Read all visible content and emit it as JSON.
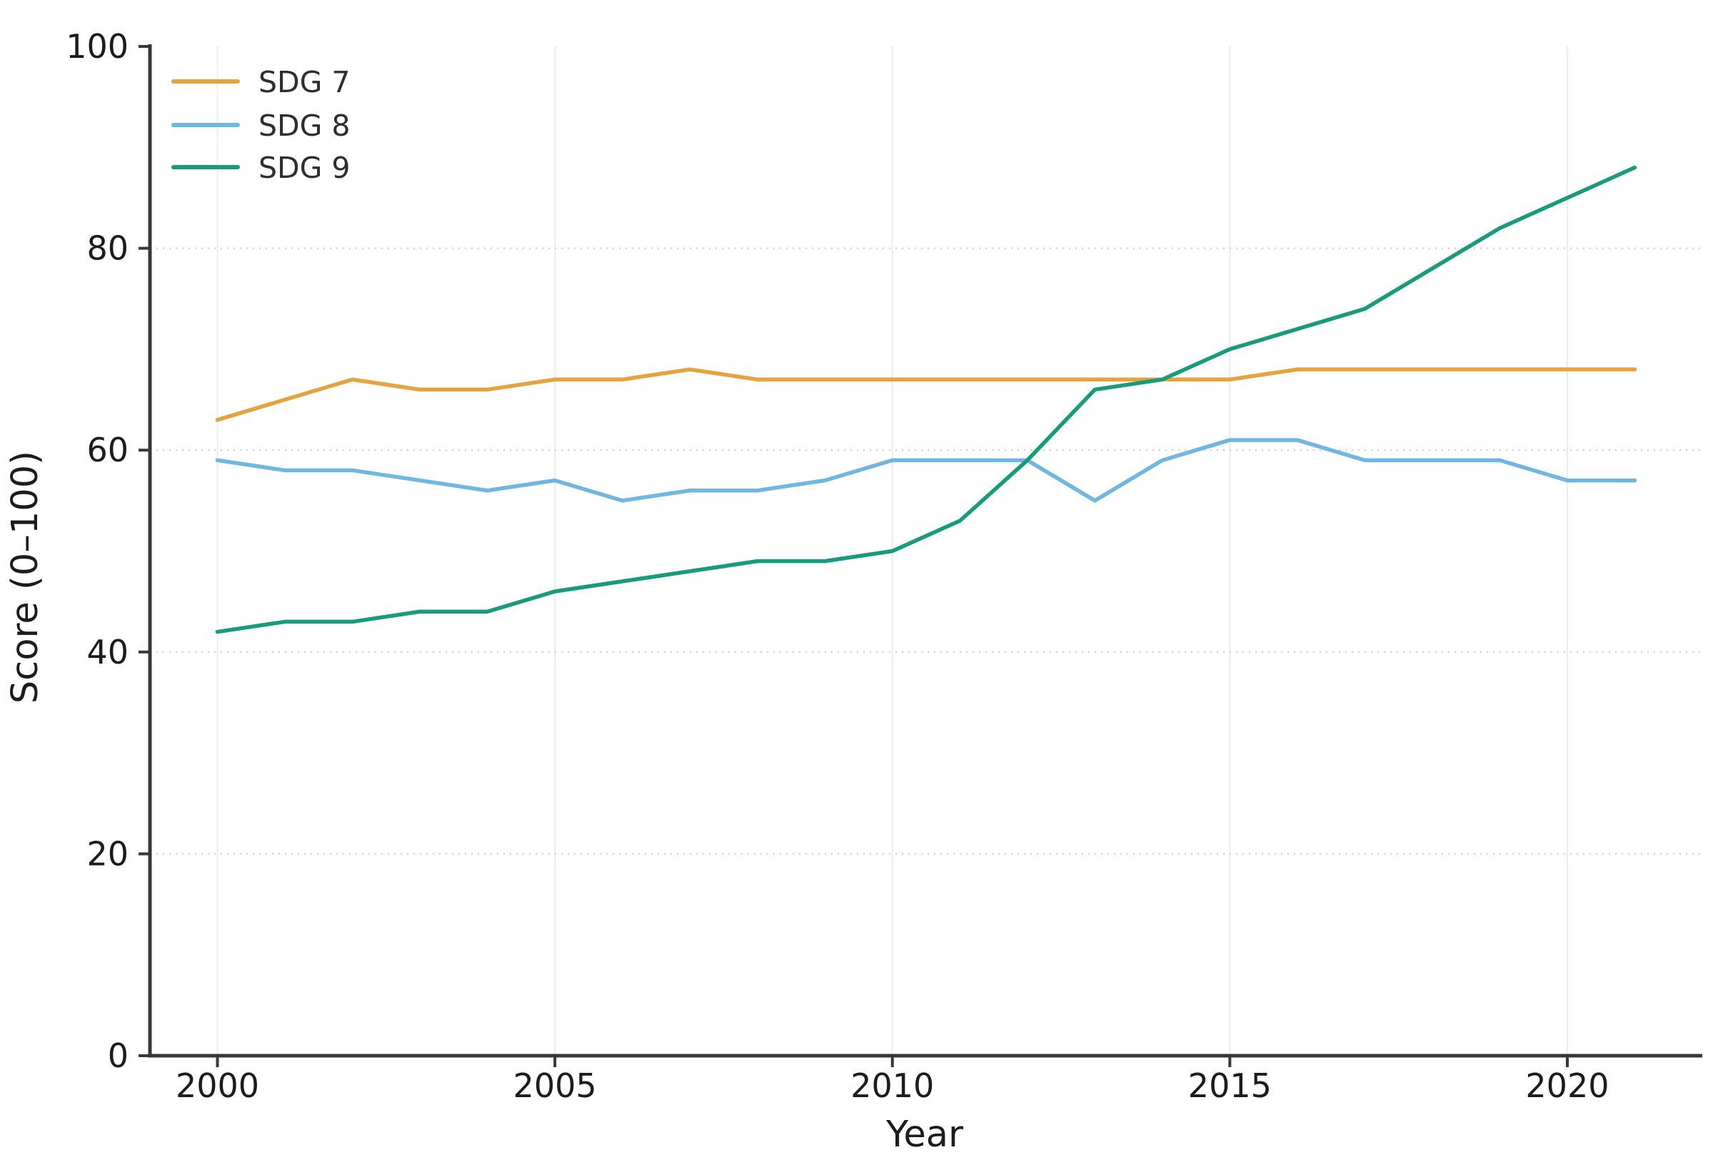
{
  "figure": {
    "background": "#ffffff",
    "xlabel": "Year",
    "ylabel": "Score (0–100)",
    "legend": [
      {
        "label": "SDG 7",
        "color": "#E5A33D"
      },
      {
        "label": "SDG 8",
        "color": "#6FB6E0"
      },
      {
        "label": "SDG 9",
        "color": "#169C7B"
      }
    ],
    "axis_color": "#383838",
    "grid_color_h": "#c9c9c9",
    "grid_color_v": "#ececec"
  },
  "chart_data": {
    "type": "line",
    "title": "",
    "xlabel": "Year",
    "ylabel": "Score (0–100)",
    "x": [
      2000,
      2001,
      2002,
      2003,
      2004,
      2005,
      2006,
      2007,
      2008,
      2009,
      2010,
      2011,
      2012,
      2013,
      2014,
      2015,
      2016,
      2017,
      2018,
      2019,
      2020,
      2021
    ],
    "series": [
      {
        "name": "SDG 7",
        "color": "#E5A33D",
        "values": [
          63,
          65,
          67,
          66,
          66,
          67,
          67,
          68,
          67,
          67,
          67,
          67,
          67,
          67,
          67,
          67,
          68,
          68,
          68,
          68,
          68,
          68
        ]
      },
      {
        "name": "SDG 8",
        "color": "#6FB6E0",
        "values": [
          59,
          58,
          58,
          57,
          56,
          57,
          55,
          56,
          56,
          57,
          59,
          59,
          59,
          55,
          59,
          61,
          61,
          59,
          59,
          59,
          57,
          57
        ]
      },
      {
        "name": "SDG 9",
        "color": "#169C7B",
        "values": [
          42,
          43,
          43,
          44,
          44,
          46,
          47,
          48,
          49,
          49,
          50,
          53,
          59,
          66,
          67,
          70,
          72,
          74,
          78,
          82,
          85,
          88
        ]
      }
    ],
    "xticks": [
      2000,
      2005,
      2010,
      2015,
      2020
    ],
    "yticks": [
      0,
      20,
      40,
      60,
      80,
      100
    ],
    "xlim": [
      1999,
      2022
    ],
    "ylim": [
      0,
      100
    ],
    "grid": true,
    "legend_position": "upper left"
  }
}
